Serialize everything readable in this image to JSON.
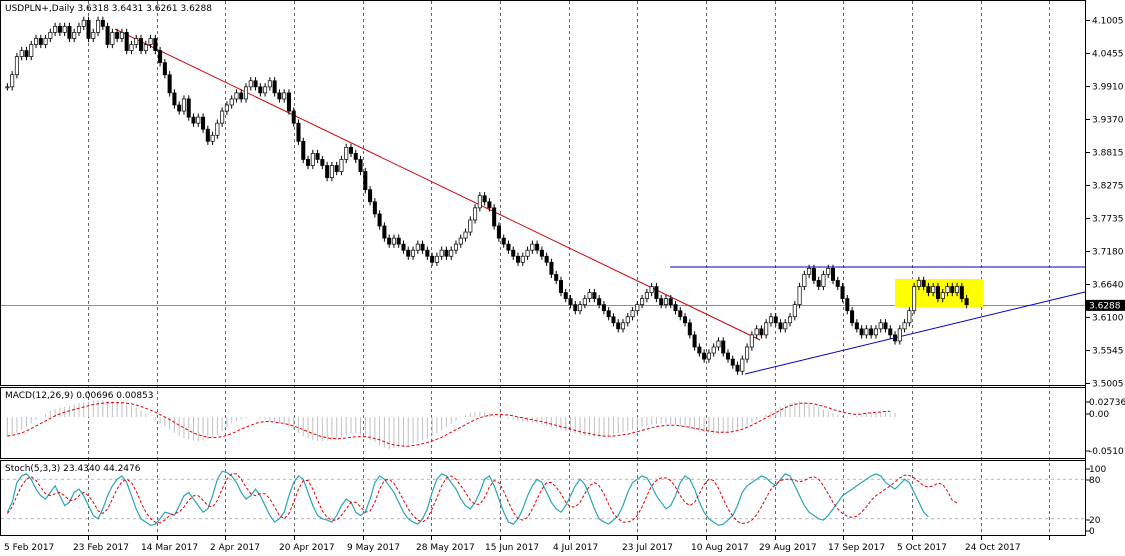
{
  "header": {
    "main": "USDPLN+,Daily  3.6318 3.6431 3.6261 3.6288",
    "macd": "MACD(12,26,9) 0.00696 0.00853",
    "stoch": "Stoch(5,3,3) 23.4340 44.2476"
  },
  "price_badge": "3.6288",
  "colors": {
    "background": "#ffffff",
    "candle": "#000000",
    "trend_down": "#d00000",
    "support_lines": "#0000c0",
    "highlight": "#ffff00",
    "macd_hist": "#c0c0c0",
    "macd_signal": "#e00000",
    "stoch_main": "#2aa5b5",
    "stoch_signal": "#e00000",
    "grid": "#000000"
  },
  "chart_data": [
    {
      "type": "candlestick",
      "title": "USDPLN+,Daily",
      "y_ticks": [
        "4.1005",
        "4.0455",
        "3.9910",
        "3.9370",
        "3.8815",
        "3.8275",
        "3.7735",
        "3.7180",
        "3.6640",
        "3.6100",
        "3.5545",
        "3.5005"
      ],
      "ylim": [
        3.5005,
        4.1005
      ],
      "x_ticks": [
        "5 Feb 2017",
        "23 Feb 2017",
        "14 Mar 2017",
        "2 Apr 2017",
        "20 Apr 2017",
        "9 May 2017",
        "28 May 2017",
        "15 Jun 2017",
        "4 Jul 2017",
        "23 Jul 2017",
        "10 Aug 2017",
        "29 Aug 2017",
        "17 Sep 2017",
        "5 Oct 2017",
        "24 Oct 2017"
      ],
      "last_price": 3.6288,
      "closes": [
        3.99,
        4.01,
        4.04,
        4.05,
        4.04,
        4.06,
        4.07,
        4.06,
        4.07,
        4.08,
        4.09,
        4.08,
        4.09,
        4.07,
        4.08,
        4.09,
        4.1,
        4.07,
        4.08,
        4.1,
        4.09,
        4.06,
        4.08,
        4.07,
        4.08,
        4.05,
        4.06,
        4.07,
        4.05,
        4.06,
        4.07,
        4.05,
        4.03,
        4.01,
        3.98,
        3.96,
        3.95,
        3.97,
        3.94,
        3.93,
        3.94,
        3.92,
        3.9,
        3.91,
        3.93,
        3.95,
        3.96,
        3.97,
        3.98,
        3.97,
        3.99,
        4.0,
        3.99,
        3.98,
        3.99,
        4.0,
        3.98,
        3.97,
        3.98,
        3.95,
        3.93,
        3.9,
        3.87,
        3.86,
        3.88,
        3.87,
        3.86,
        3.84,
        3.86,
        3.85,
        3.87,
        3.89,
        3.88,
        3.87,
        3.85,
        3.82,
        3.8,
        3.78,
        3.76,
        3.74,
        3.73,
        3.74,
        3.73,
        3.72,
        3.71,
        3.72,
        3.73,
        3.72,
        3.71,
        3.7,
        3.71,
        3.72,
        3.71,
        3.72,
        3.73,
        3.74,
        3.75,
        3.77,
        3.79,
        3.81,
        3.8,
        3.79,
        3.76,
        3.74,
        3.73,
        3.72,
        3.71,
        3.7,
        3.71,
        3.72,
        3.73,
        3.72,
        3.71,
        3.7,
        3.68,
        3.67,
        3.65,
        3.64,
        3.63,
        3.62,
        3.63,
        3.64,
        3.65,
        3.64,
        3.63,
        3.62,
        3.61,
        3.6,
        3.59,
        3.6,
        3.61,
        3.62,
        3.63,
        3.64,
        3.65,
        3.66,
        3.64,
        3.63,
        3.64,
        3.63,
        3.62,
        3.61,
        3.6,
        3.58,
        3.56,
        3.55,
        3.54,
        3.55,
        3.56,
        3.57,
        3.55,
        3.54,
        3.53,
        3.52,
        3.54,
        3.56,
        3.58,
        3.59,
        3.58,
        3.6,
        3.61,
        3.6,
        3.59,
        3.6,
        3.61,
        3.63,
        3.66,
        3.68,
        3.69,
        3.67,
        3.66,
        3.68,
        3.69,
        3.67,
        3.66,
        3.64,
        3.62,
        3.6,
        3.59,
        3.58,
        3.59,
        3.58,
        3.59,
        3.6,
        3.59,
        3.58,
        3.57,
        3.59,
        3.6,
        3.62,
        3.66,
        3.67,
        3.66,
        3.65,
        3.66,
        3.64,
        3.65,
        3.66,
        3.65,
        3.66,
        3.64,
        3.63
      ]
    },
    {
      "type": "macd",
      "title": "MACD(12,26,9)",
      "y_ticks": [
        "0.02736",
        "0.00",
        "-0.05107"
      ],
      "ylim": [
        -0.06,
        0.035
      ],
      "histogram": [
        -0.03,
        -0.028,
        -0.025,
        -0.02,
        -0.015,
        -0.01,
        -0.005,
        0.0,
        0.005,
        0.01,
        0.012,
        0.015,
        0.016,
        0.018,
        0.02,
        0.022,
        0.024,
        0.025,
        0.026,
        0.027,
        0.027,
        0.026,
        0.025,
        0.024,
        0.023,
        0.02,
        0.018,
        0.015,
        0.01,
        0.005,
        0.0,
        -0.005,
        -0.01,
        -0.015,
        -0.02,
        -0.025,
        -0.03,
        -0.033,
        -0.035,
        -0.037,
        -0.038,
        -0.037,
        -0.035,
        -0.032,
        -0.028,
        -0.022,
        -0.016,
        -0.01,
        -0.006,
        -0.004,
        -0.002,
        0.0,
        0.0,
        -0.002,
        -0.004,
        -0.006,
        -0.008,
        -0.01,
        -0.012,
        -0.016,
        -0.02,
        -0.025,
        -0.03,
        -0.034,
        -0.036,
        -0.038,
        -0.038,
        -0.037,
        -0.036,
        -0.034,
        -0.032,
        -0.028,
        -0.026,
        -0.026,
        -0.028,
        -0.032,
        -0.036,
        -0.04,
        -0.045,
        -0.048,
        -0.05,
        -0.049,
        -0.048,
        -0.046,
        -0.044,
        -0.042,
        -0.04,
        -0.037,
        -0.034,
        -0.03,
        -0.026,
        -0.021,
        -0.016,
        -0.011,
        -0.006,
        -0.001,
        0.003,
        0.006,
        0.008,
        0.008,
        0.007,
        0.006,
        0.004,
        0.002,
        0.0,
        -0.002,
        -0.004,
        -0.006,
        -0.007,
        -0.008,
        -0.009,
        -0.01,
        -0.012,
        -0.014,
        -0.016,
        -0.018,
        -0.02,
        -0.022,
        -0.024,
        -0.026,
        -0.028,
        -0.029,
        -0.03,
        -0.031,
        -0.031,
        -0.03,
        -0.029,
        -0.028,
        -0.026,
        -0.024,
        -0.022,
        -0.02,
        -0.018,
        -0.016,
        -0.014,
        -0.012,
        -0.011,
        -0.01,
        -0.01,
        -0.011,
        -0.012,
        -0.014,
        -0.016,
        -0.018,
        -0.02,
        -0.022,
        -0.024,
        -0.025,
        -0.026,
        -0.026,
        -0.025,
        -0.024,
        -0.022,
        -0.019,
        -0.016,
        -0.012,
        -0.008,
        -0.004,
        0.0,
        0.004,
        0.008,
        0.012,
        0.016,
        0.019,
        0.022,
        0.024,
        0.025,
        0.024,
        0.022,
        0.019,
        0.016,
        0.012,
        0.009,
        0.006,
        0.004,
        0.002,
        0.001,
        0.001,
        0.002,
        0.004,
        0.006,
        0.007,
        0.007,
        0.007,
        0.006,
        0.006,
        0.007
      ],
      "signal": [
        -0.03,
        -0.029,
        -0.027,
        -0.025,
        -0.022,
        -0.018,
        -0.014,
        -0.01,
        -0.006,
        -0.002,
        0.002,
        0.005,
        0.008,
        0.01,
        0.012,
        0.014,
        0.016,
        0.018,
        0.02,
        0.021,
        0.022,
        0.023,
        0.023,
        0.023,
        0.023,
        0.022,
        0.021,
        0.019,
        0.017,
        0.014,
        0.011,
        0.008,
        0.004,
        0.0,
        -0.004,
        -0.008,
        -0.013,
        -0.017,
        -0.021,
        -0.025,
        -0.028,
        -0.03,
        -0.032,
        -0.033,
        -0.032,
        -0.031,
        -0.029,
        -0.026,
        -0.023,
        -0.019,
        -0.016,
        -0.013,
        -0.01,
        -0.008,
        -0.007,
        -0.007,
        -0.008,
        -0.009,
        -0.01,
        -0.012,
        -0.014,
        -0.017,
        -0.02,
        -0.023,
        -0.026,
        -0.029,
        -0.031,
        -0.033,
        -0.034,
        -0.034,
        -0.034,
        -0.033,
        -0.032,
        -0.031,
        -0.031,
        -0.031,
        -0.032,
        -0.034,
        -0.036,
        -0.039,
        -0.042,
        -0.044,
        -0.045,
        -0.046,
        -0.046,
        -0.045,
        -0.044,
        -0.042,
        -0.04,
        -0.038,
        -0.035,
        -0.032,
        -0.028,
        -0.024,
        -0.02,
        -0.016,
        -0.012,
        -0.008,
        -0.004,
        -0.001,
        0.001,
        0.003,
        0.004,
        0.004,
        0.004,
        0.003,
        0.002,
        0.0,
        -0.001,
        -0.003,
        -0.004,
        -0.006,
        -0.007,
        -0.009,
        -0.011,
        -0.013,
        -0.015,
        -0.017,
        -0.019,
        -0.021,
        -0.023,
        -0.025,
        -0.026,
        -0.028,
        -0.029,
        -0.03,
        -0.03,
        -0.03,
        -0.029,
        -0.028,
        -0.027,
        -0.025,
        -0.023,
        -0.021,
        -0.019,
        -0.017,
        -0.015,
        -0.014,
        -0.013,
        -0.013,
        -0.013,
        -0.014,
        -0.015,
        -0.016,
        -0.018,
        -0.019,
        -0.021,
        -0.022,
        -0.023,
        -0.024,
        -0.024,
        -0.024,
        -0.023,
        -0.021,
        -0.019,
        -0.016,
        -0.013,
        -0.009,
        -0.005,
        -0.001,
        0.003,
        0.007,
        0.011,
        0.015,
        0.018,
        0.02,
        0.022,
        0.022,
        0.022,
        0.021,
        0.019,
        0.017,
        0.015,
        0.012,
        0.01,
        0.008,
        0.006,
        0.005,
        0.004,
        0.005,
        0.006,
        0.007,
        0.008,
        0.008,
        0.009,
        0.009
      ]
    },
    {
      "type": "stochastic",
      "title": "Stoch(5,3,3)",
      "y_ticks": [
        "100",
        "80",
        "20",
        "0"
      ],
      "ylim": [
        0,
        100
      ],
      "main": [
        30,
        45,
        75,
        85,
        88,
        80,
        65,
        55,
        50,
        60,
        70,
        55,
        40,
        45,
        60,
        65,
        55,
        40,
        25,
        20,
        35,
        55,
        70,
        80,
        85,
        75,
        55,
        35,
        20,
        15,
        10,
        12,
        20,
        30,
        28,
        25,
        40,
        55,
        60,
        50,
        40,
        30,
        35,
        55,
        80,
        92,
        90,
        85,
        75,
        60,
        50,
        55,
        65,
        55,
        40,
        25,
        15,
        20,
        30,
        55,
        75,
        85,
        80,
        60,
        40,
        25,
        20,
        18,
        15,
        25,
        40,
        50,
        45,
        30,
        25,
        30,
        50,
        75,
        85,
        80,
        70,
        60,
        45,
        30,
        20,
        15,
        12,
        20,
        35,
        60,
        80,
        88,
        85,
        75,
        65,
        50,
        40,
        35,
        45,
        60,
        80,
        85,
        70,
        50,
        30,
        15,
        12,
        20,
        35,
        55,
        70,
        80,
        75,
        60,
        45,
        35,
        30,
        40,
        55,
        70,
        80,
        72,
        55,
        35,
        20,
        15,
        12,
        18,
        25,
        40,
        60,
        75,
        80,
        85,
        82,
        70,
        55,
        45,
        35,
        40,
        55,
        75,
        85,
        80,
        65,
        45,
        30,
        20,
        15,
        10,
        12,
        18,
        25,
        40,
        60,
        70,
        75,
        80,
        85,
        82,
        75,
        70,
        80,
        88,
        85,
        70,
        55,
        40,
        30,
        25,
        20,
        18,
        25,
        35,
        45,
        55,
        60,
        65,
        70,
        75,
        80,
        85,
        88,
        85,
        75,
        70,
        65,
        72,
        80,
        75,
        60,
        45,
        30,
        23
      ],
      "signal": [
        28,
        38,
        55,
        70,
        80,
        84,
        78,
        68,
        58,
        55,
        58,
        60,
        55,
        48,
        48,
        55,
        60,
        55,
        45,
        32,
        28,
        35,
        50,
        65,
        76,
        80,
        75,
        62,
        45,
        30,
        20,
        15,
        14,
        18,
        25,
        28,
        30,
        38,
        48,
        55,
        55,
        48,
        40,
        38,
        48,
        65,
        80,
        88,
        88,
        80,
        68,
        58,
        55,
        58,
        58,
        50,
        38,
        25,
        20,
        28,
        45,
        65,
        78,
        78,
        65,
        48,
        32,
        22,
        18,
        18,
        25,
        35,
        45,
        45,
        38,
        30,
        32,
        45,
        65,
        78,
        80,
        74,
        62,
        48,
        35,
        25,
        18,
        15,
        20,
        35,
        52,
        70,
        82,
        85,
        80,
        70,
        60,
        48,
        42,
        42,
        52,
        68,
        78,
        75,
        62,
        45,
        30,
        20,
        18,
        22,
        35,
        50,
        65,
        75,
        75,
        68,
        58,
        45,
        38,
        38,
        45,
        58,
        70,
        75,
        70,
        58,
        42,
        28,
        20,
        15,
        15,
        18,
        25,
        38,
        55,
        70,
        78,
        82,
        82,
        78,
        68,
        55,
        45,
        40,
        45,
        58,
        72,
        80,
        78,
        66,
        50,
        35,
        24,
        16,
        13,
        14,
        18,
        26,
        38,
        52,
        65,
        72,
        78,
        80,
        80,
        78,
        76,
        78,
        82,
        84,
        80,
        70,
        58,
        45,
        35,
        28,
        24,
        22,
        24,
        30,
        38,
        48,
        55,
        60,
        65,
        70,
        76,
        82,
        86,
        86,
        82,
        76,
        70,
        68,
        70,
        74,
        72,
        62,
        48,
        44
      ]
    }
  ]
}
